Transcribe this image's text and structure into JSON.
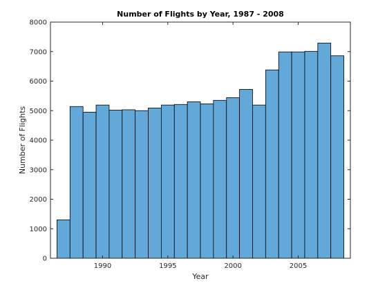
{
  "chart_data": {
    "type": "bar",
    "title": "Number of Flights by Year, 1987 - 2008",
    "xlabel": "Year",
    "ylabel": "Number of Flights",
    "x": [
      1987,
      1988,
      1989,
      1990,
      1991,
      1992,
      1993,
      1994,
      1995,
      1996,
      1997,
      1998,
      1999,
      2000,
      2001,
      2002,
      2003,
      2004,
      2005,
      2006,
      2007,
      2008
    ],
    "values": [
      1300,
      5140,
      4950,
      5190,
      5020,
      5030,
      5000,
      5090,
      5190,
      5210,
      5300,
      5230,
      5350,
      5440,
      5720,
      5190,
      6380,
      6990,
      6990,
      7010,
      7290,
      6860
    ],
    "xlim": [
      1986,
      2009
    ],
    "ylim": [
      0,
      8000
    ],
    "xticks": [
      1990,
      1995,
      2000,
      2005
    ],
    "yticks": [
      0,
      1000,
      2000,
      3000,
      4000,
      5000,
      6000,
      7000,
      8000
    ],
    "bar_color": "#62A8D8",
    "edge_color": "#000000",
    "grid": false
  }
}
